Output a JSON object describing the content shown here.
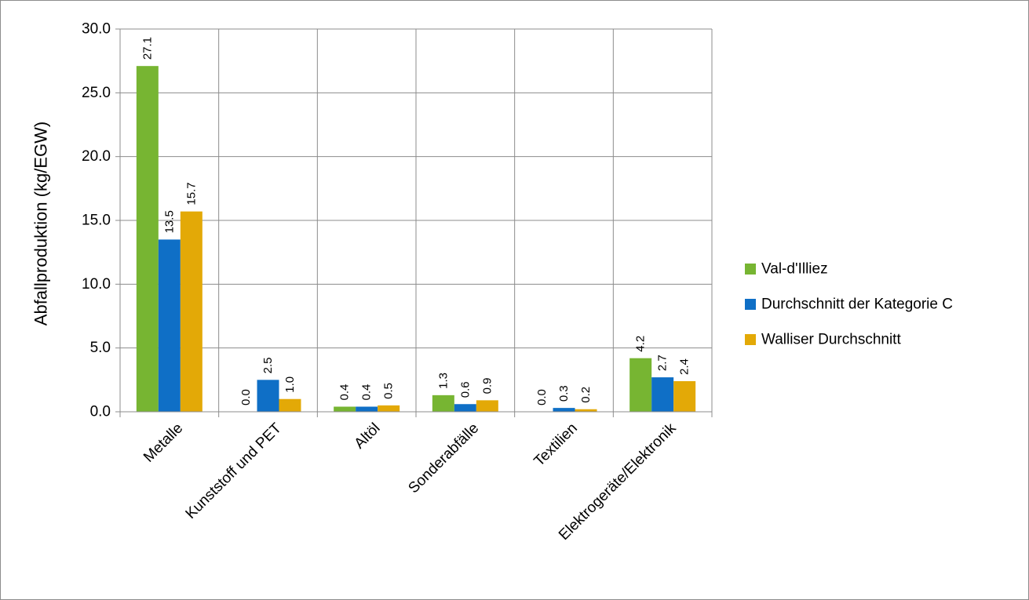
{
  "chart_data": {
    "type": "bar",
    "title": "",
    "xlabel": "",
    "ylabel": "Abfallproduktion (kg/EGW)",
    "ylim": [
      0,
      30
    ],
    "yticks": [
      "0.0",
      "5.0",
      "10.0",
      "15.0",
      "20.0",
      "25.0",
      "30.0"
    ],
    "grid": true,
    "legend_position": "right",
    "categories": [
      "Metalle",
      "Kunststoff und PET",
      "Altöl",
      "Sonderabfälle",
      "Textilien",
      "Elektrogeräte/Elektronik"
    ],
    "series": [
      {
        "name": "Val-d'Illiez",
        "color": "#77b532",
        "values": [
          27.1,
          0.0,
          0.4,
          1.3,
          0.0,
          4.2
        ],
        "labels": [
          "27.1",
          "0.0",
          "0.4",
          "1.3",
          "0.0",
          "4.2"
        ]
      },
      {
        "name": "Durchschnitt der Kategorie C",
        "color": "#0f6fc6",
        "values": [
          13.5,
          2.5,
          0.4,
          0.6,
          0.3,
          2.7
        ],
        "labels": [
          "13.5",
          "2.5",
          "0.4",
          "0.6",
          "0.3",
          "2.7"
        ]
      },
      {
        "name": "Walliser Durchschnitt",
        "color": "#e3a907",
        "values": [
          15.7,
          1.0,
          0.5,
          0.9,
          0.2,
          2.4
        ],
        "labels": [
          "15.7",
          "1.0",
          "0.5",
          "0.9",
          "0.2",
          "2.4"
        ]
      }
    ]
  }
}
